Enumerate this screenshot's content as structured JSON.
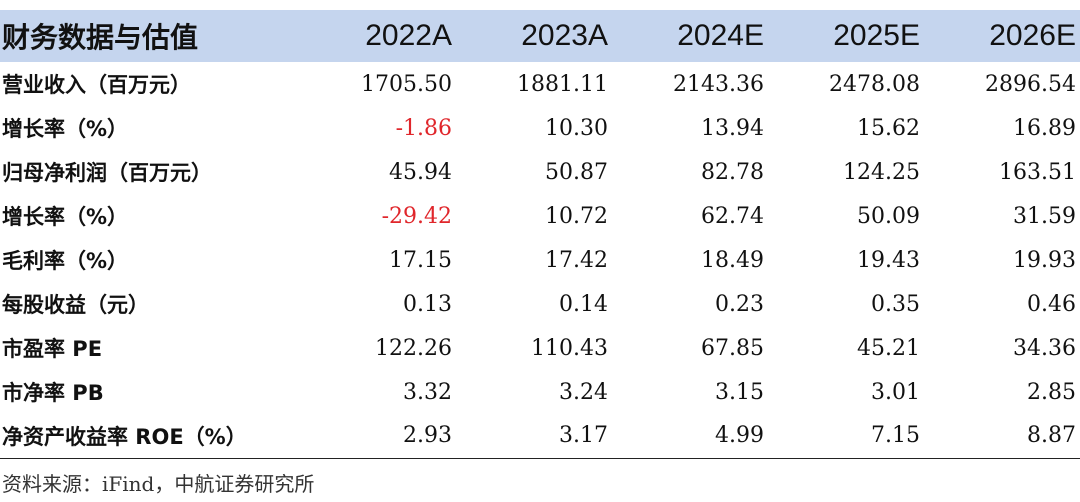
{
  "table": {
    "header": {
      "label": "财务数据与估值",
      "years": [
        "2022A",
        "2023A",
        "2024E",
        "2025E",
        "2026E"
      ]
    },
    "rows": [
      {
        "label": "营业收入（百万元）",
        "values": [
          "1705.50",
          "1881.11",
          "2143.36",
          "2478.08",
          "2896.54"
        ]
      },
      {
        "label": "增长率（%）",
        "values": [
          "-1.86",
          "10.30",
          "13.94",
          "15.62",
          "16.89"
        ]
      },
      {
        "label": "归母净利润（百万元）",
        "values": [
          "45.94",
          "50.87",
          "82.78",
          "124.25",
          "163.51"
        ]
      },
      {
        "label": "增长率（%）",
        "values": [
          "-29.42",
          "10.72",
          "62.74",
          "50.09",
          "31.59"
        ]
      },
      {
        "label": "毛利率（%）",
        "values": [
          "17.15",
          "17.42",
          "18.49",
          "19.43",
          "19.93"
        ]
      },
      {
        "label": "每股收益（元）",
        "values": [
          "0.13",
          "0.14",
          "0.23",
          "0.35",
          "0.46"
        ]
      },
      {
        "label": "市盈率 PE",
        "values": [
          "122.26",
          "110.43",
          "67.85",
          "45.21",
          "34.36"
        ]
      },
      {
        "label": "市净率 PB",
        "values": [
          "3.32",
          "3.24",
          "3.15",
          "3.01",
          "2.85"
        ]
      },
      {
        "label": "净资产收益率 ROE（%）",
        "values": [
          "2.93",
          "3.17",
          "4.99",
          "7.15",
          "8.87"
        ]
      }
    ]
  },
  "source": "资料来源：iFind，中航证券研究所",
  "colors": {
    "header_bg": "#c5d5ee",
    "negative": "#e0262b",
    "text": "#111111"
  }
}
